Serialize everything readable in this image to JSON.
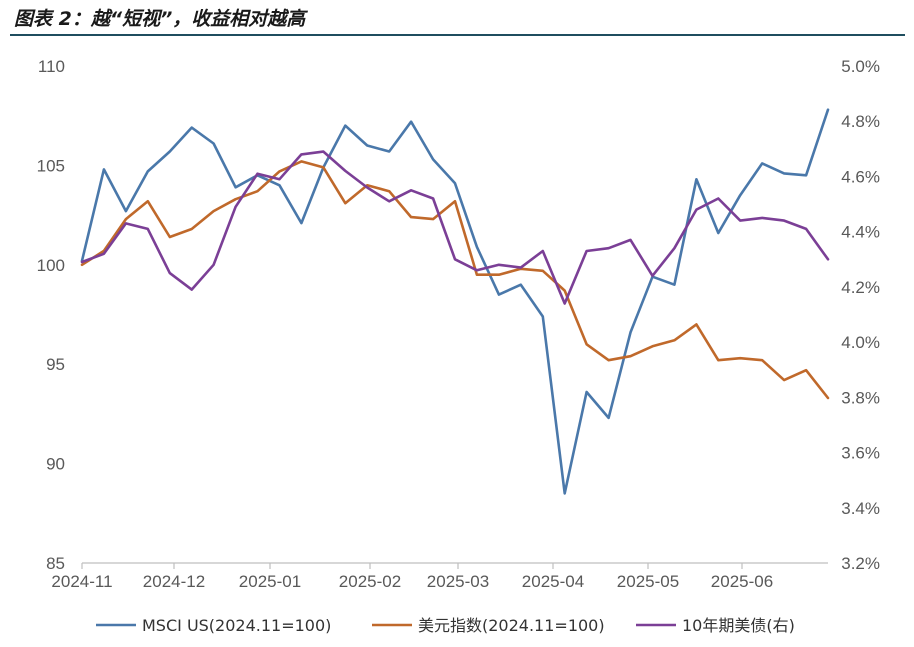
{
  "header": {
    "title": "图表 2：越“短视”，收益相对越高"
  },
  "chart_data": {
    "type": "line",
    "x_ticks": [
      "2024-11",
      "2024-12",
      "2025-01",
      "2025-02",
      "2025-03",
      "2025-04",
      "2025-05",
      "2025-06"
    ],
    "ylim_left": [
      85,
      110
    ],
    "yticks_left": [
      "110",
      "105",
      "100",
      "95",
      "90",
      "85"
    ],
    "ylim_right": [
      3.2,
      5.0
    ],
    "yticks_right": [
      "5.0%",
      "4.8%",
      "4.6%",
      "4.4%",
      "4.2%",
      "4.0%",
      "3.8%",
      "3.6%",
      "3.4%",
      "3.2%"
    ],
    "grid": false,
    "legend_position": "bottom",
    "series": [
      {
        "name": "MSCI US(2024.11=100)",
        "axis": "left",
        "color": "#4a78aa",
        "values": [
          100.2,
          104.8,
          102.7,
          104.7,
          105.7,
          106.9,
          106.1,
          103.9,
          104.5,
          104.0,
          102.1,
          104.9,
          107.0,
          106.0,
          105.7,
          107.2,
          105.3,
          104.1,
          100.9,
          98.5,
          99.0,
          97.4,
          88.5,
          93.6,
          92.3,
          96.6,
          99.4,
          99.0,
          104.3,
          101.6,
          103.5,
          105.1,
          104.6,
          104.5,
          107.8
        ]
      },
      {
        "name": "美元指数(2024.11=100)",
        "axis": "left",
        "color": "#c0692b",
        "values": [
          100.0,
          100.7,
          102.3,
          103.2,
          101.4,
          101.8,
          102.7,
          103.3,
          103.7,
          104.7,
          105.2,
          104.9,
          103.1,
          104.0,
          103.7,
          102.4,
          102.3,
          103.2,
          99.5,
          99.5,
          99.8,
          99.7,
          98.7,
          96.0,
          95.2,
          95.4,
          95.9,
          96.2,
          97.0,
          95.2,
          95.3,
          95.2,
          94.2,
          94.7,
          93.3
        ]
      },
      {
        "name": "10年期美债(右)",
        "axis": "right",
        "color": "#7b3f96",
        "values": [
          4.29,
          4.32,
          4.43,
          4.41,
          4.25,
          4.19,
          4.28,
          4.49,
          4.61,
          4.59,
          4.68,
          4.69,
          4.62,
          4.56,
          4.51,
          4.55,
          4.52,
          4.3,
          4.26,
          4.28,
          4.27,
          4.33,
          4.14,
          4.33,
          4.34,
          4.37,
          4.24,
          4.34,
          4.48,
          4.52,
          4.44,
          4.45,
          4.44,
          4.41,
          4.3
        ]
      }
    ]
  }
}
